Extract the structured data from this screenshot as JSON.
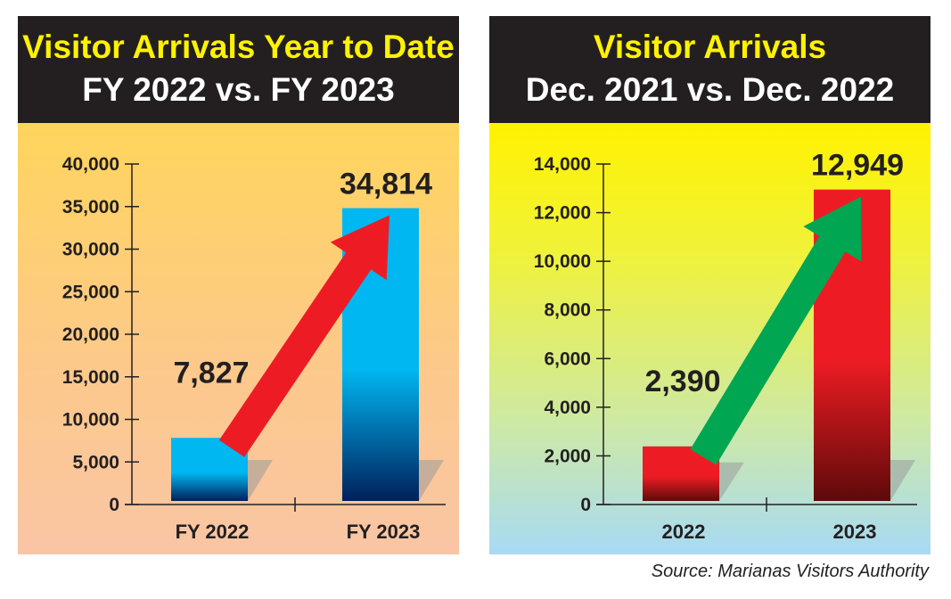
{
  "source": "Source: Marianas Visitors Authority",
  "chart_data": [
    {
      "type": "bar",
      "title": "Visitor Arrivals Year to Date",
      "subtitle": "FY 2022 vs. FY 2023",
      "categories": [
        "FY 2022",
        "FY 2023"
      ],
      "values": [
        7827,
        34814
      ],
      "value_labels": [
        "7,827",
        "34,814"
      ],
      "ylim": [
        0,
        40000
      ],
      "yticks": [
        0,
        5000,
        10000,
        15000,
        20000,
        25000,
        30000,
        35000,
        40000
      ],
      "ytick_labels": [
        "0",
        "5,000",
        "10,000",
        "15,000",
        "20,000",
        "25,000",
        "30,000",
        "35,000",
        "40,000"
      ],
      "bar_color_top": "#00b7f1",
      "bar_color_bottom": "#00205b",
      "arrow_color": "#ed1c24",
      "grid": false
    },
    {
      "type": "bar",
      "title": "Visitor Arrivals",
      "subtitle": "Dec. 2021 vs. Dec. 2022",
      "categories": [
        "2022",
        "2023"
      ],
      "values": [
        2390,
        12949
      ],
      "value_labels": [
        "2,390",
        "12,949"
      ],
      "ylim": [
        0,
        14000
      ],
      "yticks": [
        0,
        2000,
        4000,
        6000,
        8000,
        10000,
        12000,
        14000
      ],
      "ytick_labels": [
        "0",
        "2,000",
        "4,000",
        "6,000",
        "8,000",
        "10,000",
        "12,000",
        "14,000"
      ],
      "bar_color_top": "#ed1c24",
      "bar_color_bottom": "#5e0a0a",
      "arrow_color": "#00a651",
      "grid": false
    }
  ]
}
